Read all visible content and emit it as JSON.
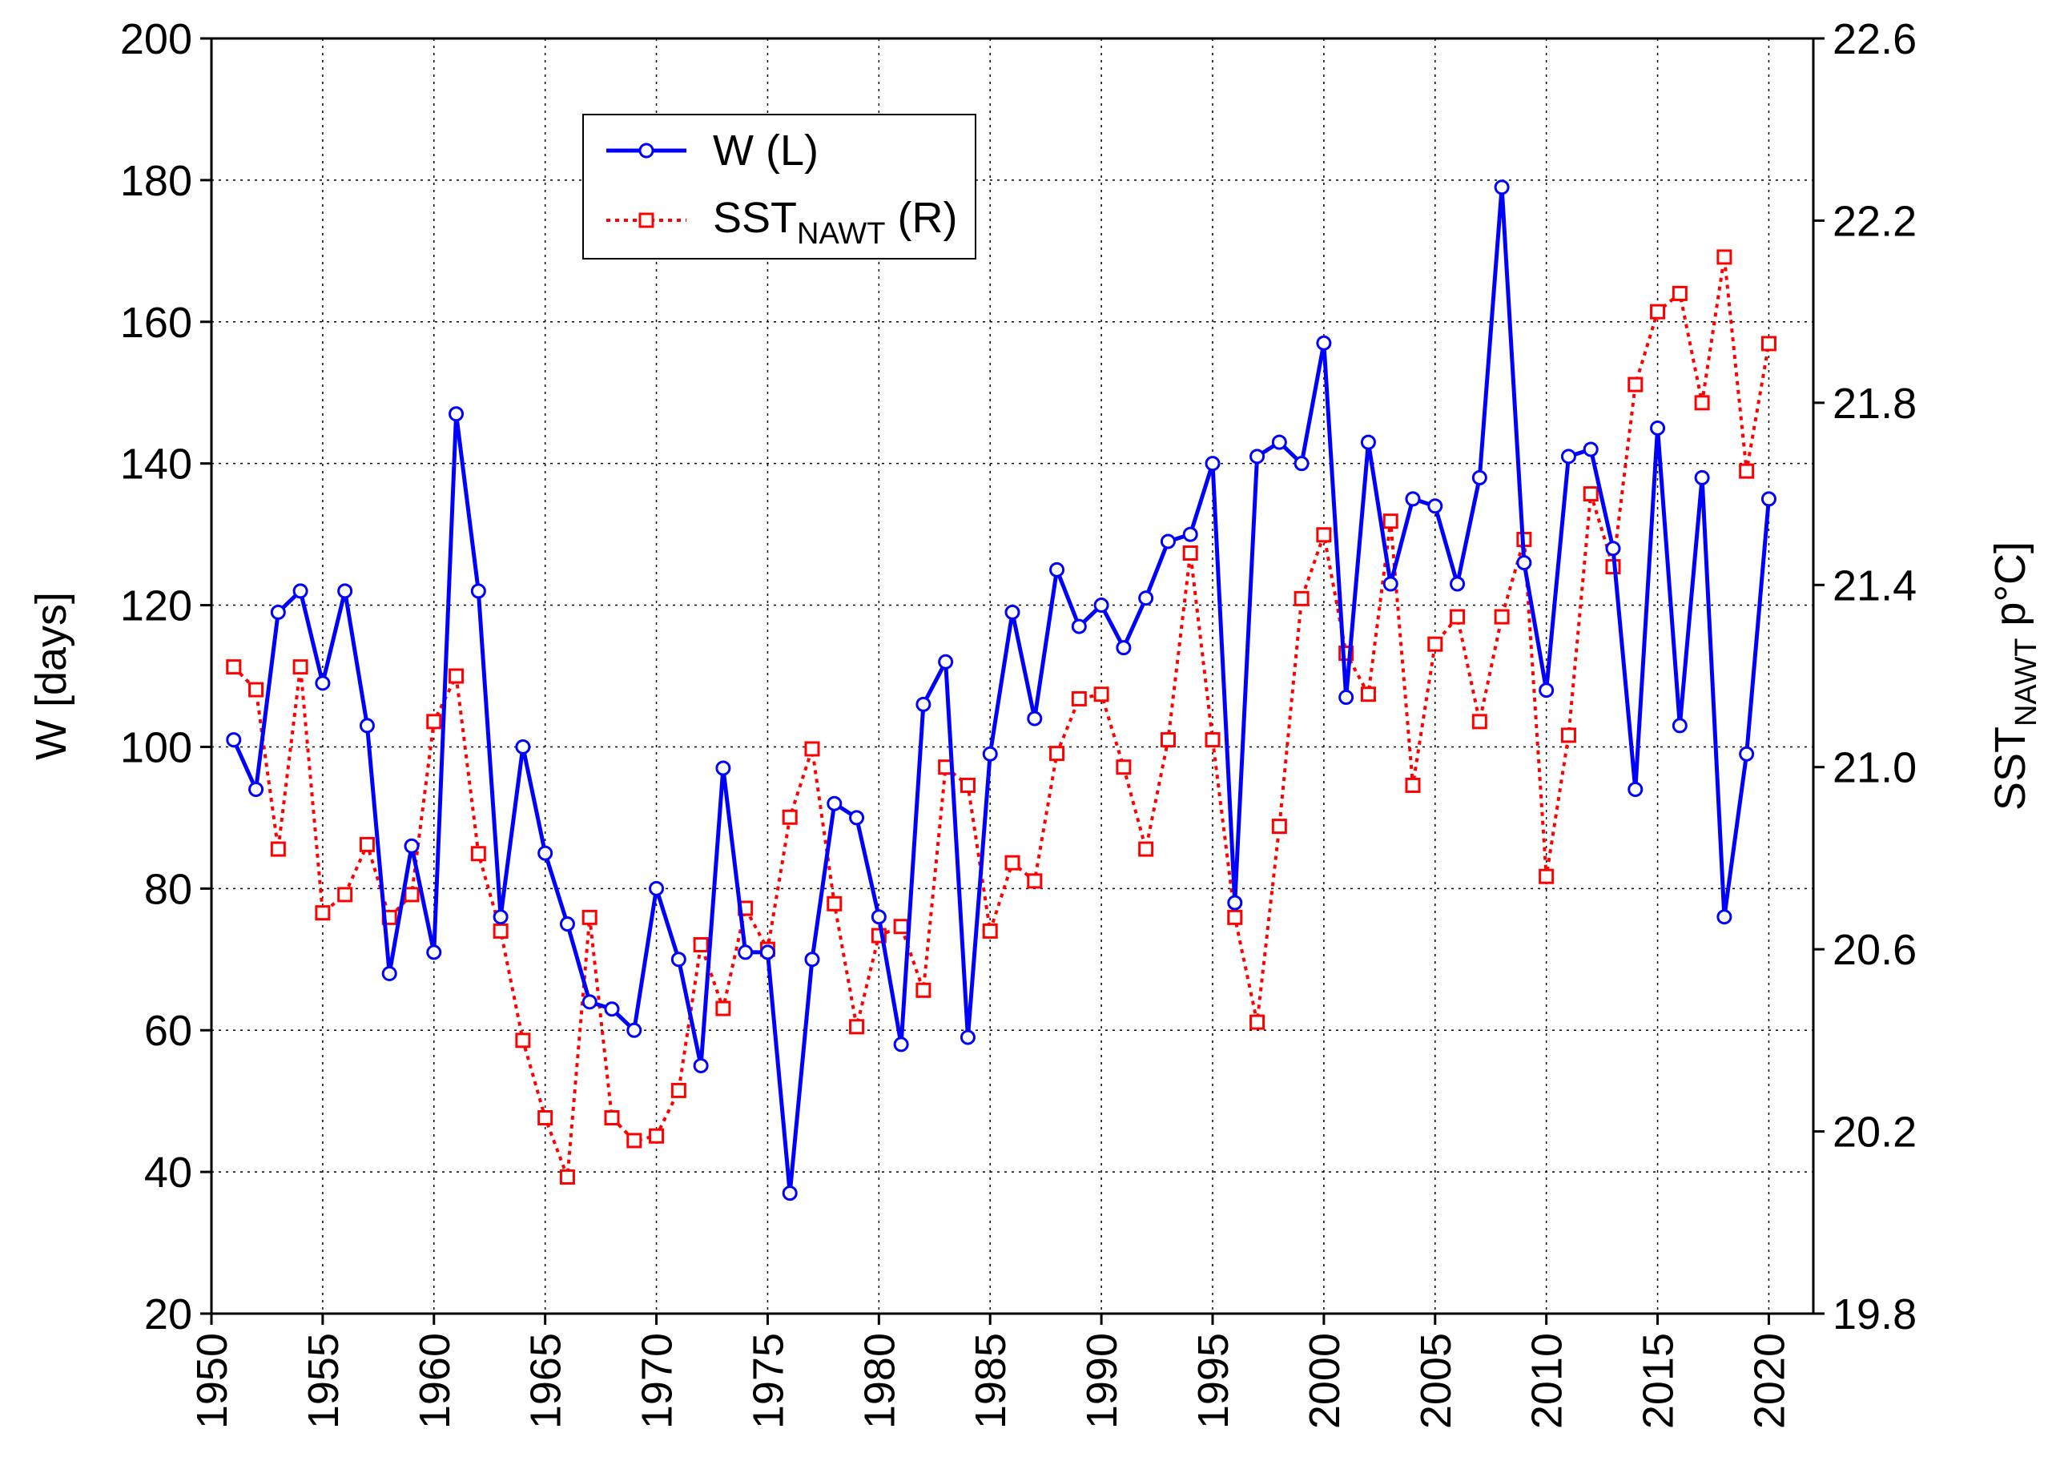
{
  "chart_data": {
    "type": "line",
    "x": [
      1951,
      1952,
      1953,
      1954,
      1955,
      1956,
      1957,
      1958,
      1959,
      1960,
      1961,
      1962,
      1963,
      1964,
      1965,
      1966,
      1967,
      1968,
      1969,
      1970,
      1971,
      1972,
      1973,
      1974,
      1975,
      1976,
      1977,
      1978,
      1979,
      1980,
      1981,
      1982,
      1983,
      1984,
      1985,
      1986,
      1987,
      1988,
      1989,
      1990,
      1991,
      1992,
      1993,
      1994,
      1995,
      1996,
      1997,
      1998,
      1999,
      2000,
      2001,
      2002,
      2003,
      2004,
      2005,
      2006,
      2007,
      2008,
      2009,
      2010,
      2011,
      2012,
      2013,
      2014,
      2015,
      2016,
      2017,
      2018,
      2019,
      2020
    ],
    "xlim": [
      1950,
      2022
    ],
    "x_ticks": [
      "1950",
      "1955",
      "1960",
      "1965",
      "1970",
      "1975",
      "1980",
      "1985",
      "1990",
      "1995",
      "2000",
      "2005",
      "2010",
      "2015",
      "2020"
    ],
    "ylim_left": [
      20,
      200
    ],
    "y_ticks_left": [
      "20",
      "40",
      "60",
      "80",
      "100",
      "120",
      "140",
      "160",
      "180",
      "200"
    ],
    "ylim_right": [
      19.8,
      22.6
    ],
    "y_ticks_right": [
      "19.8",
      "20.2",
      "20.6",
      "21.0",
      "21.4",
      "21.8",
      "22.2",
      "22.6"
    ],
    "ylabel_left": "W [days]",
    "ylabel_right": {
      "main": "SST",
      "sub": "NAWT",
      "tail": " p°C]"
    },
    "grid": true,
    "legend_position": "top-left",
    "series": [
      {
        "name": "W (L)",
        "axis": "left",
        "color": "#0000ff",
        "style": "solid",
        "marker": "circle",
        "values": [
          101,
          94,
          119,
          122,
          109,
          122,
          103,
          68,
          86,
          71,
          147,
          122,
          76,
          100,
          85,
          75,
          64,
          63,
          60,
          80,
          70,
          55,
          97,
          71,
          71,
          37,
          70,
          92,
          90,
          76,
          58,
          106,
          112,
          59,
          99,
          119,
          104,
          125,
          117,
          120,
          114,
          121,
          129,
          130,
          140,
          78,
          141,
          143,
          140,
          157,
          107,
          143,
          123,
          135,
          134,
          123,
          138,
          179,
          126,
          108,
          141,
          142,
          128,
          94,
          145,
          103,
          138,
          76,
          99,
          135
        ]
      },
      {
        "name": "SST",
        "name_sub": "NAWT",
        "name_tail": " (R)",
        "axis": "right",
        "color": "#ff0000",
        "style": "dotted",
        "marker": "square",
        "values": [
          21.22,
          21.17,
          20.82,
          21.22,
          20.68,
          20.72,
          20.83,
          20.67,
          20.72,
          21.1,
          21.2,
          20.81,
          20.64,
          20.4,
          20.23,
          20.1,
          20.67,
          20.23,
          20.18,
          20.19,
          20.29,
          20.61,
          20.47,
          20.69,
          20.6,
          20.89,
          21.04,
          20.7,
          20.43,
          20.63,
          20.65,
          20.51,
          21.0,
          20.96,
          20.64,
          20.79,
          20.75,
          21.03,
          21.15,
          21.16,
          21.0,
          20.82,
          21.06,
          21.47,
          21.06,
          20.67,
          20.44,
          20.87,
          21.37,
          21.51,
          21.25,
          21.16,
          21.54,
          20.96,
          21.27,
          21.33,
          21.1,
          21.33,
          21.5,
          20.76,
          21.07,
          21.6,
          21.44,
          21.84,
          22.0,
          22.04,
          21.8,
          22.12,
          21.65,
          21.93
        ]
      }
    ]
  }
}
